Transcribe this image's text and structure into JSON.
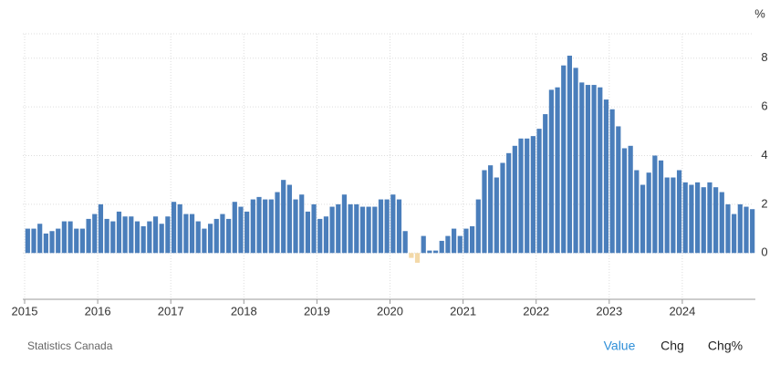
{
  "chart_data": {
    "type": "bar",
    "unit": "%",
    "source": "Statistics Canada",
    "buttons": [
      "Value",
      "Chg",
      "Chg%"
    ],
    "active_button": 0,
    "color": "#4a7ebb",
    "negative_color": "#f3d9a8",
    "grid": true,
    "ylim": [
      -1.9,
      9.0
    ],
    "yticks": [
      0,
      2,
      4,
      6,
      8
    ],
    "categories": [
      "2015",
      null,
      null,
      null,
      null,
      null,
      null,
      null,
      null,
      null,
      null,
      null,
      "2016",
      null,
      null,
      null,
      null,
      null,
      null,
      null,
      null,
      null,
      null,
      null,
      "2017",
      null,
      null,
      null,
      null,
      null,
      null,
      null,
      null,
      null,
      null,
      null,
      "2018",
      null,
      null,
      null,
      null,
      null,
      null,
      null,
      null,
      null,
      null,
      null,
      "2019",
      null,
      null,
      null,
      null,
      null,
      null,
      null,
      null,
      null,
      null,
      null,
      "2020",
      null,
      null,
      null,
      null,
      null,
      null,
      null,
      null,
      null,
      null,
      null,
      "2021",
      null,
      null,
      null,
      null,
      null,
      null,
      null,
      null,
      null,
      null,
      null,
      "2022",
      null,
      null,
      null,
      null,
      null,
      null,
      null,
      null,
      null,
      null,
      null,
      "2023",
      null,
      null,
      null,
      null,
      null,
      null,
      null,
      null,
      null,
      null,
      null,
      "2024",
      null,
      null,
      null,
      null,
      null,
      null,
      null,
      null,
      null,
      null,
      null
    ],
    "values": [
      1.0,
      1.0,
      1.2,
      0.8,
      0.9,
      1.0,
      1.3,
      1.3,
      1.0,
      1.0,
      1.4,
      1.6,
      2.0,
      1.4,
      1.3,
      1.7,
      1.5,
      1.5,
      1.3,
      1.1,
      1.3,
      1.5,
      1.2,
      1.5,
      2.1,
      2.0,
      1.6,
      1.6,
      1.3,
      1.0,
      1.2,
      1.4,
      1.6,
      1.4,
      2.1,
      1.9,
      1.7,
      2.2,
      2.3,
      2.2,
      2.2,
      2.5,
      3.0,
      2.8,
      2.2,
      2.4,
      1.7,
      2.0,
      1.4,
      1.5,
      1.9,
      2.0,
      2.4,
      2.0,
      2.0,
      1.9,
      1.9,
      1.9,
      2.2,
      2.2,
      2.4,
      2.2,
      0.9,
      -0.2,
      -0.4,
      0.7,
      0.1,
      0.1,
      0.5,
      0.7,
      1.0,
      0.7,
      1.0,
      1.1,
      2.2,
      3.4,
      3.6,
      3.1,
      3.7,
      4.1,
      4.4,
      4.7,
      4.7,
      4.8,
      5.1,
      5.7,
      6.7,
      6.8,
      7.7,
      8.1,
      7.6,
      7.0,
      6.9,
      6.9,
      6.8,
      6.3,
      5.9,
      5.2,
      4.3,
      4.4,
      3.4,
      2.8,
      3.3,
      4.0,
      3.8,
      3.1,
      3.1,
      3.4,
      2.9,
      2.8,
      2.9,
      2.7,
      2.9,
      2.7,
      2.5,
      2.0,
      1.6,
      2.0,
      1.9,
      1.8
    ]
  }
}
